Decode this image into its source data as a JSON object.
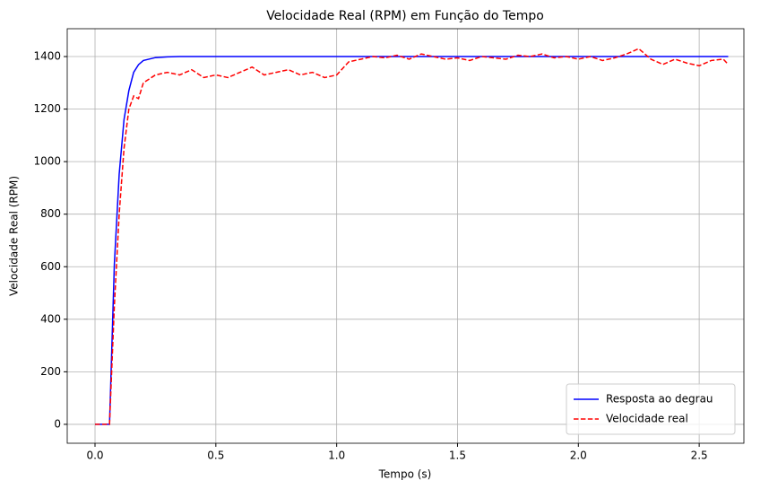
{
  "chart_data": {
    "type": "line",
    "title": "Velocidade Real (RPM) em Função do Tempo",
    "xlabel": "Tempo (s)",
    "ylabel": "Velocidade Real (RPM)",
    "x": [
      0,
      0.02,
      0.04,
      0.06,
      0.08,
      0.1,
      0.12,
      0.14,
      0.16,
      0.18,
      0.2,
      0.25,
      0.3,
      0.35,
      0.4,
      0.45,
      0.5,
      0.55,
      0.6,
      0.65,
      0.7,
      0.75,
      0.8,
      0.85,
      0.9,
      0.95,
      1.0,
      1.05,
      1.1,
      1.15,
      1.2,
      1.25,
      1.3,
      1.35,
      1.4,
      1.45,
      1.5,
      1.55,
      1.6,
      1.65,
      1.7,
      1.75,
      1.8,
      1.85,
      1.9,
      1.95,
      2.0,
      2.05,
      2.1,
      2.15,
      2.2,
      2.25,
      2.3,
      2.35,
      2.4,
      2.45,
      2.5,
      2.55,
      2.6,
      2.62
    ],
    "series": [
      {
        "name": "Resposta ao degrau",
        "color": "#0000ff",
        "linestyle": "solid",
        "values": [
          0,
          0,
          0,
          0,
          609,
          952,
          1160,
          1270,
          1340,
          1369,
          1385,
          1396,
          1399,
          1400,
          1400,
          1400,
          1400,
          1400,
          1400,
          1400,
          1400,
          1400,
          1400,
          1400,
          1400,
          1400,
          1400,
          1400,
          1400,
          1400,
          1400,
          1400,
          1400,
          1400,
          1400,
          1400,
          1400,
          1400,
          1400,
          1400,
          1400,
          1400,
          1400,
          1400,
          1400,
          1400,
          1400,
          1400,
          1400,
          1400,
          1400,
          1400,
          1400,
          1400,
          1400,
          1400,
          1400,
          1400,
          1400,
          1400
        ]
      },
      {
        "name": "Velocidade real",
        "color": "#ff0000",
        "linestyle": "dashed",
        "values": [
          0,
          0,
          0,
          0,
          450,
          800,
          1050,
          1200,
          1250,
          1240,
          1300,
          1330,
          1340,
          1330,
          1350,
          1320,
          1330,
          1320,
          1340,
          1360,
          1330,
          1340,
          1350,
          1330,
          1340,
          1320,
          1330,
          1380,
          1390,
          1400,
          1395,
          1405,
          1390,
          1410,
          1400,
          1390,
          1395,
          1385,
          1400,
          1395,
          1390,
          1405,
          1400,
          1410,
          1395,
          1400,
          1390,
          1400,
          1385,
          1395,
          1410,
          1430,
          1390,
          1370,
          1390,
          1375,
          1365,
          1385,
          1390,
          1370
        ]
      }
    ],
    "xlim": [
      -0.115,
      2.685
    ],
    "ylim": [
      -72,
      1506
    ],
    "xticks": [
      {
        "value": 0,
        "label": "0.0"
      },
      0.5,
      {
        "value": 1,
        "label": "1.0"
      },
      1.5,
      {
        "value": 2,
        "label": "2.0"
      },
      2.5
    ],
    "yticks": [
      0,
      200,
      400,
      600,
      800,
      1000,
      1200,
      1400
    ],
    "grid": true,
    "legend": "lower right"
  }
}
